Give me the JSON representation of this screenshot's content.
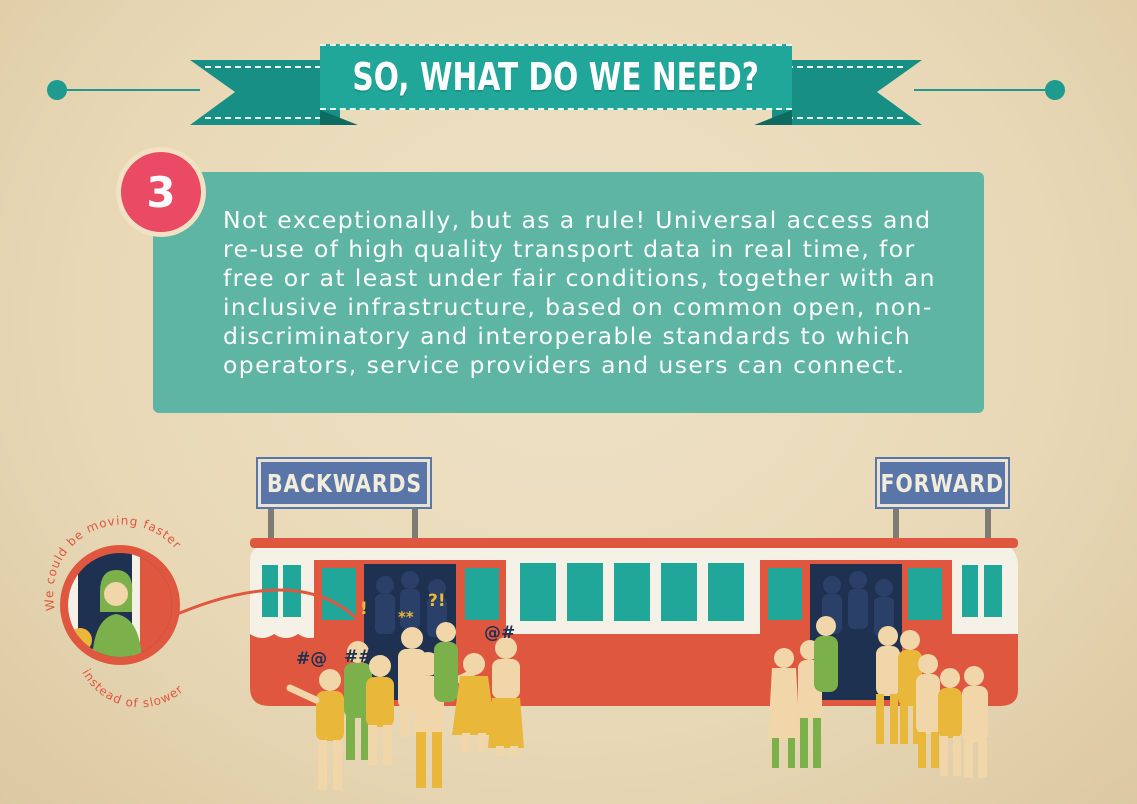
{
  "header": {
    "title": "SO, WHAT DO WE NEED?"
  },
  "step": {
    "number": "3",
    "text": "Not exceptionally, but as a rule! Universal access and re-use of high quality transport data in real time, for free or at least under fair conditions, together with an inclusive infrastructure, based on common open, non-discriminatory and interoperable standards to which operators, service providers and users can connect."
  },
  "signs": {
    "backwards": "BACKWARDS",
    "forward": "FORWARD"
  },
  "bubble": {
    "top_text": "We could be moving faster",
    "bottom_text": "instead of slower"
  },
  "crowd_symbols": {
    "a": "#@",
    "b": "##",
    "c": "!",
    "d": "**",
    "e": "?!",
    "f": "@#"
  },
  "colors": {
    "teal": "#20a79a",
    "box_teal": "#5eb5a3",
    "badge_red": "#ea4a64",
    "train_red": "#e0573f",
    "sign_blue": "#5a76a8",
    "navy": "#1f3150",
    "figure_yellow": "#e9b73a",
    "figure_green": "#7bb04a",
    "figure_cream": "#f0d6a8"
  }
}
